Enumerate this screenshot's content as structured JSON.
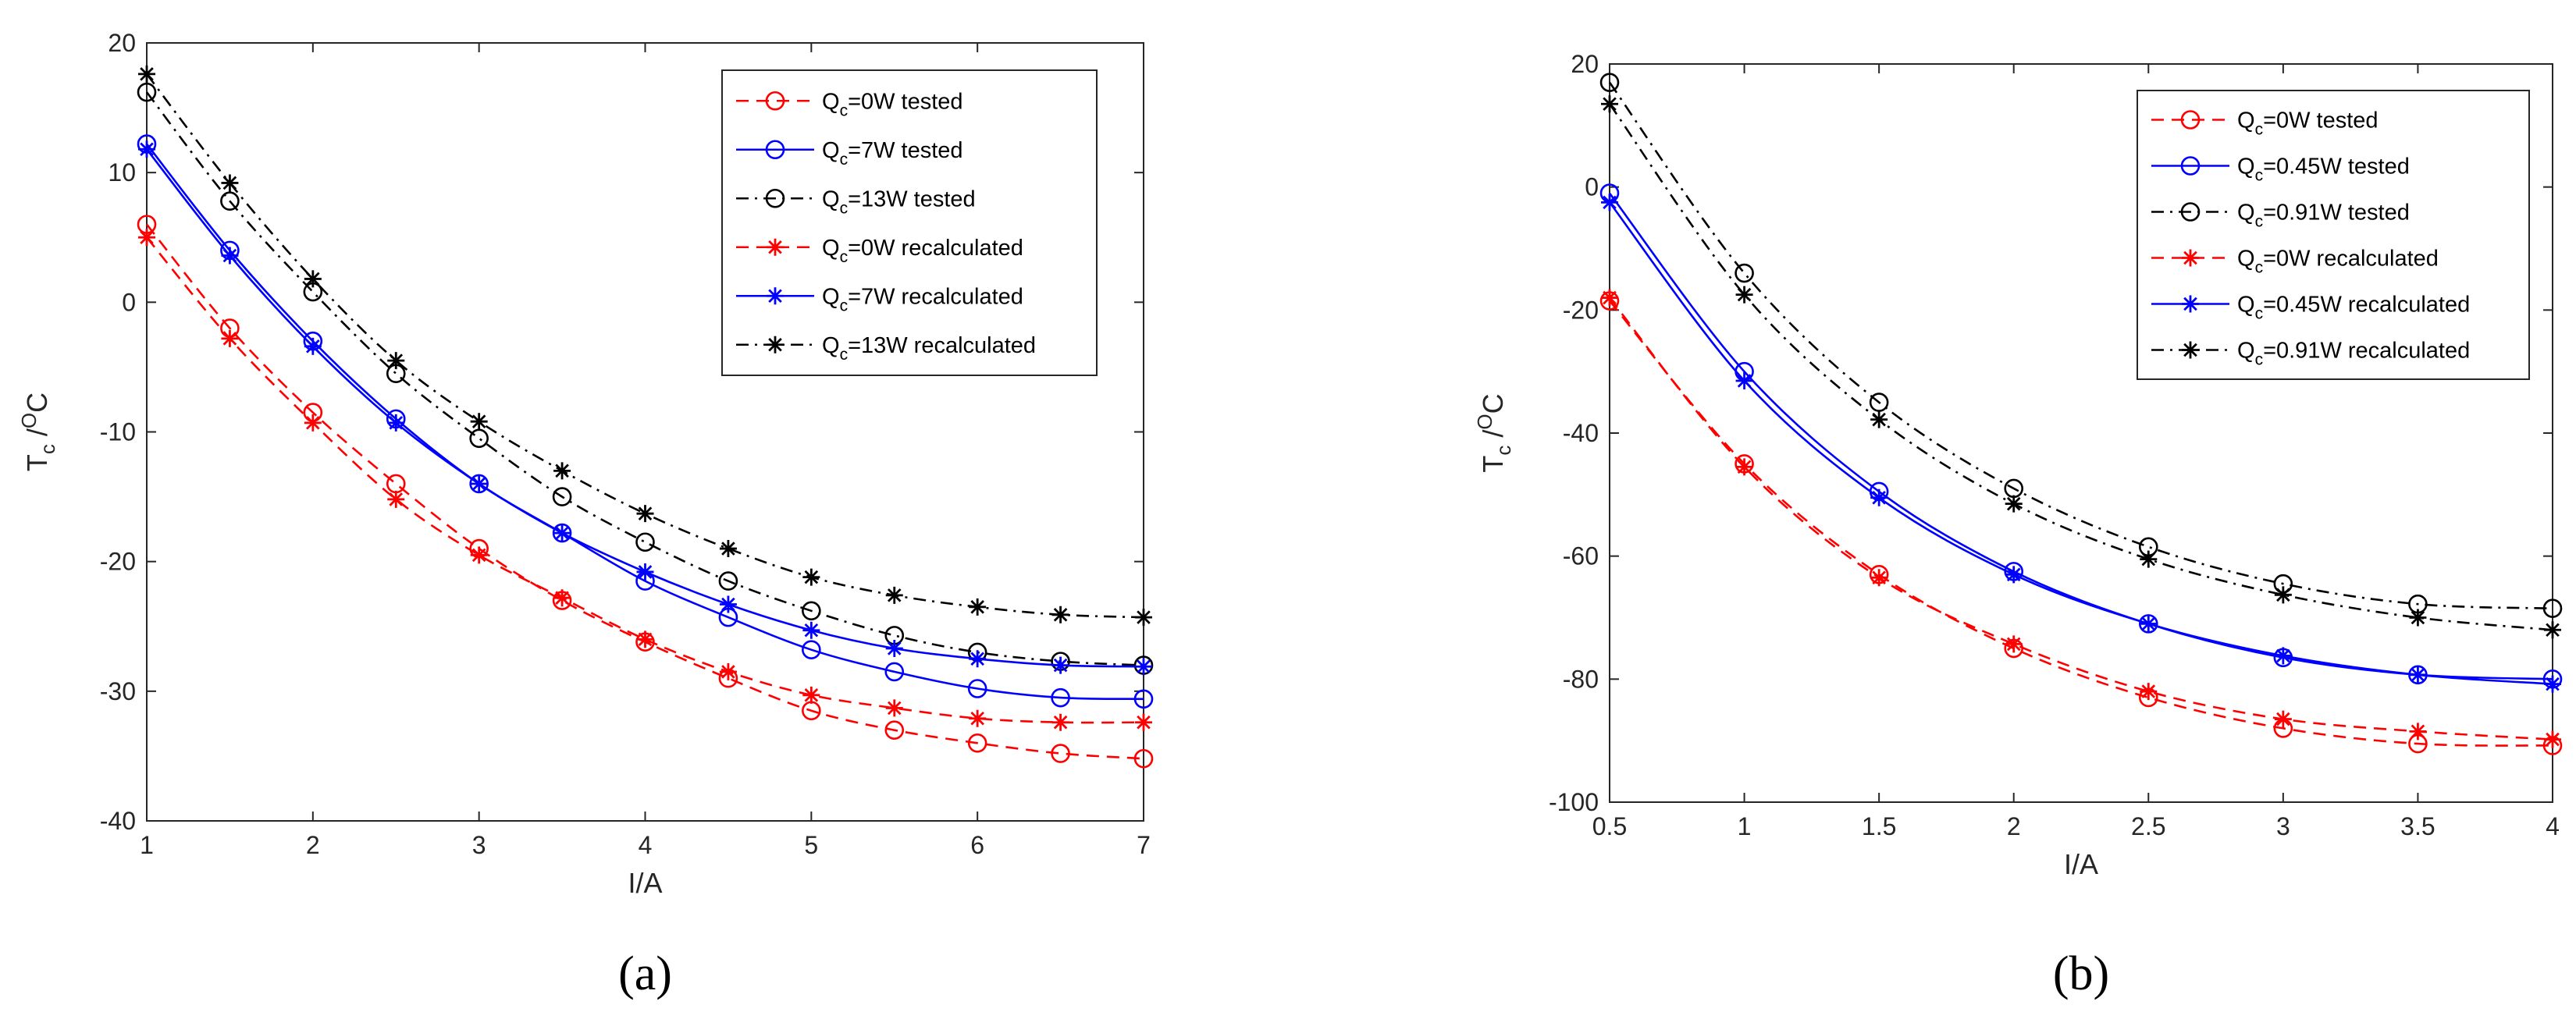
{
  "chart_data": [
    {
      "id": "a",
      "type": "line",
      "panel_label": "(a)",
      "xlabel": "I/A",
      "ylabel": {
        "main": "T",
        "sub": "c",
        "rest": " /",
        "sup": "O",
        "tail": "C"
      },
      "xlim": [
        1,
        7
      ],
      "ylim": [
        -40,
        20
      ],
      "xticks": [
        "1",
        "2",
        "3",
        "4",
        "5",
        "6",
        "7"
      ],
      "yticks": [
        "-40",
        "-30",
        "-20",
        "-10",
        "0",
        "10",
        "20"
      ],
      "legend_position": "top-right",
      "x": [
        1,
        1.5,
        2,
        2.5,
        3,
        3.5,
        4,
        4.5,
        5,
        5.5,
        6,
        6.5,
        7
      ],
      "series": [
        {
          "pre": "Q",
          "sub": "c",
          "post": "=0W tested",
          "color": "#ff0000",
          "dash": "dashed",
          "marker": "circle",
          "values": [
            6,
            -2,
            -8.5,
            -14,
            -19,
            -23,
            -26.2,
            -29,
            -31.5,
            -33,
            -34,
            -34.8,
            -35.2
          ]
        },
        {
          "pre": "Q",
          "sub": "c",
          "post": "=7W tested",
          "color": "#0000ff",
          "dash": "solid",
          "marker": "circle",
          "values": [
            12.2,
            4,
            -3,
            -9,
            -14,
            -17.8,
            -21.5,
            -24.3,
            -26.8,
            -28.5,
            -29.8,
            -30.5,
            -30.6
          ]
        },
        {
          "pre": "Q",
          "sub": "c",
          "post": "=13W tested",
          "color": "#000000",
          "dash": "dashdot",
          "marker": "circle",
          "values": [
            16.2,
            7.8,
            0.8,
            -5.5,
            -10.5,
            -15,
            -18.5,
            -21.5,
            -23.8,
            -25.7,
            -27,
            -27.7,
            -28
          ]
        },
        {
          "pre": "Q",
          "sub": "c",
          "post": "=0W recalculated",
          "color": "#ff0000",
          "dash": "dashed",
          "marker": "star",
          "values": [
            5,
            -2.8,
            -9.3,
            -15.2,
            -19.5,
            -22.8,
            -26,
            -28.5,
            -30.3,
            -31.3,
            -32.1,
            -32.4,
            -32.4
          ]
        },
        {
          "pre": "Q",
          "sub": "c",
          "post": "=7W recalculated",
          "color": "#0000ff",
          "dash": "solid",
          "marker": "star",
          "values": [
            11.8,
            3.6,
            -3.4,
            -9.3,
            -14,
            -17.8,
            -20.8,
            -23.3,
            -25.3,
            -26.7,
            -27.5,
            -28,
            -28.1
          ]
        },
        {
          "pre": "Q",
          "sub": "c",
          "post": "=13W recalculated",
          "color": "#000000",
          "dash": "dashdot",
          "marker": "star",
          "values": [
            17.6,
            9.2,
            1.8,
            -4.5,
            -9.2,
            -13,
            -16.3,
            -19,
            -21.2,
            -22.6,
            -23.5,
            -24.1,
            -24.3
          ]
        }
      ]
    },
    {
      "id": "b",
      "type": "line",
      "panel_label": "(b)",
      "xlabel": "I/A",
      "ylabel": {
        "main": "T",
        "sub": "c",
        "rest": " /",
        "sup": "O",
        "tail": "C"
      },
      "xlim": [
        0.5,
        4
      ],
      "ylim": [
        -100,
        20
      ],
      "xticks": [
        "0.5",
        "1",
        "1.5",
        "2",
        "2.5",
        "3",
        "3.5",
        "4"
      ],
      "yticks": [
        "-100",
        "-80",
        "-60",
        "-40",
        "-20",
        "0",
        "20"
      ],
      "legend_position": "top-right",
      "x": [
        0.5,
        1,
        1.5,
        2,
        2.5,
        3,
        3.5,
        4
      ],
      "series": [
        {
          "pre": "Q",
          "sub": "c",
          "post": "=0W tested",
          "color": "#ff0000",
          "dash": "dashed",
          "marker": "circle",
          "values": [
            -18.5,
            -45,
            -63,
            -75,
            -83,
            -88,
            -90.5,
            -90.8
          ]
        },
        {
          "pre": "Q",
          "sub": "c",
          "post": "=0.45W tested",
          "color": "#0000ff",
          "dash": "solid",
          "marker": "circle",
          "values": [
            -1,
            -30,
            -49.5,
            -62.5,
            -71,
            -76.5,
            -79.3,
            -80
          ]
        },
        {
          "pre": "Q",
          "sub": "c",
          "post": "=0.91W tested",
          "color": "#000000",
          "dash": "dashdot",
          "marker": "circle",
          "values": [
            17,
            -14,
            -35,
            -49,
            -58.5,
            -64.5,
            -67.8,
            -68.5
          ]
        },
        {
          "pre": "Q",
          "sub": "c",
          "post": "=0W recalculated",
          "color": "#ff0000",
          "dash": "dashed",
          "marker": "star",
          "values": [
            -18,
            -45.5,
            -63.5,
            -74.3,
            -82,
            -86.5,
            -88.5,
            -89.8
          ]
        },
        {
          "pre": "Q",
          "sub": "c",
          "post": "=0.45W recalculated",
          "color": "#0000ff",
          "dash": "solid",
          "marker": "star",
          "values": [
            -2.5,
            -31.5,
            -50.5,
            -63,
            -71,
            -76.2,
            -79.3,
            -80.8
          ]
        },
        {
          "pre": "Q",
          "sub": "c",
          "post": "=0.91W recalculated",
          "color": "#000000",
          "dash": "dashdot",
          "marker": "star",
          "values": [
            13.5,
            -17.5,
            -37.8,
            -51.5,
            -60.5,
            -66.3,
            -70,
            -72
          ]
        }
      ]
    }
  ]
}
